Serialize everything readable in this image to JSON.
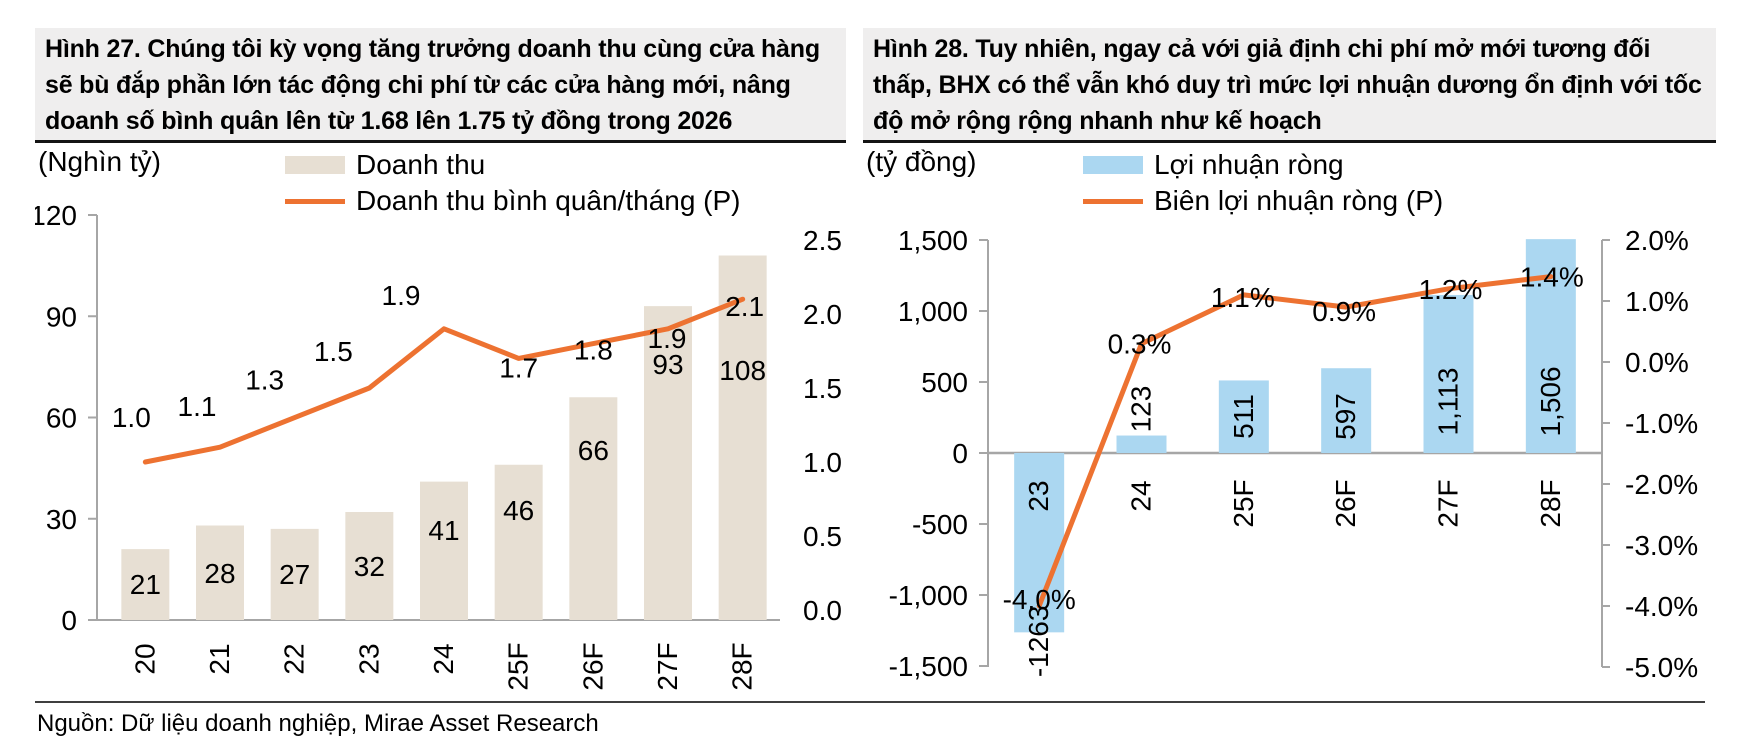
{
  "page": {
    "source": "Nguồn: Dữ liệu doanh nghiệp, Mirae Asset Research"
  },
  "chart_data": [
    {
      "type": "bar",
      "subtype": "combo-bar-line",
      "title": "Hình 27. Chúng tôi kỳ vọng tăng trưởng doanh thu cùng cửa hàng sẽ bù đắp phần lớn tác động chi phí từ các cửa hàng mới, nâng doanh số bình quân lên từ 1.68 lên 1.75 tỷ đồng trong 2026",
      "unit_label": "(Nghìn tỷ)",
      "categories": [
        "20",
        "21",
        "22",
        "23",
        "24",
        "25F",
        "26F",
        "27F",
        "28F"
      ],
      "series": [
        {
          "name": "Doanh thu",
          "type": "bar",
          "axis": "left",
          "color": "#e7dfd3",
          "values": [
            21,
            28,
            27,
            32,
            41,
            46,
            66,
            93,
            108
          ],
          "labels": [
            "21",
            "28",
            "27",
            "32",
            "41",
            "46",
            "66",
            "93",
            "108"
          ]
        },
        {
          "name": "Doanh thu bình quân/tháng (P)",
          "type": "line",
          "axis": "right",
          "color": "#ed7231",
          "values": [
            1.0,
            1.1,
            1.3,
            1.5,
            1.9,
            1.7,
            1.8,
            1.9,
            2.1
          ],
          "labels": [
            "1.0",
            "1.1",
            "1.3",
            "1.5",
            "1.9",
            "1.7",
            "1.8",
            "1.9",
            "2.1"
          ]
        }
      ],
      "left_axis": {
        "min": 0,
        "max": 120,
        "tick_values": [
          0,
          30,
          60,
          90,
          120
        ],
        "tick_labels": [
          "0",
          "30",
          "60",
          "90",
          "120"
        ]
      },
      "right_axis": {
        "min": 0.0,
        "max": 2.5,
        "tick_values": [
          2.5,
          2.0,
          1.5,
          1.0,
          0.5,
          0.0
        ],
        "tick_labels": [
          "2.5",
          "2.0",
          "1.5",
          "1.0",
          "0.5",
          "0.0"
        ]
      },
      "gridlines": false,
      "legend_position": "top"
    },
    {
      "type": "bar",
      "subtype": "combo-bar-line",
      "title": "Hình 28. Tuy nhiên, ngay cả với giả định chi phí mở mới tương đối thấp, BHX có thể vẫn khó duy trì mức lợi nhuận dương ổn định với tốc độ mở rộng rộng nhanh như kế hoạch",
      "unit_label": "(tỷ đồng)",
      "categories": [
        "23",
        "24",
        "25F",
        "26F",
        "27F",
        "28F"
      ],
      "series": [
        {
          "name": "Lợi nhuận ròng",
          "type": "bar",
          "axis": "left",
          "color": "#abd7f1",
          "values": [
            -1263,
            123,
            511,
            597,
            1113,
            1506
          ],
          "labels": [
            "-1263",
            "123",
            "511",
            "597",
            "1,113",
            "1,506"
          ]
        },
        {
          "name": "Biên lợi nhuận ròng (P)",
          "type": "line",
          "axis": "right",
          "color": "#ed7231",
          "values": [
            -4.0,
            0.3,
            1.1,
            0.9,
            1.2,
            1.4
          ],
          "labels": [
            "-4.0%",
            "0.3%",
            "1.1%",
            "0.9%",
            "1.2%",
            "1.4%"
          ]
        }
      ],
      "left_axis": {
        "min": -1500,
        "max": 1500,
        "tick_values": [
          1500,
          1000,
          500,
          0,
          -500,
          -1000,
          -1500
        ],
        "tick_labels": [
          "1,500",
          "1,000",
          "500",
          "0",
          "-500",
          "-1,000",
          "-1,500"
        ]
      },
      "right_axis": {
        "min": -5.0,
        "max": 2.0,
        "tick_values": [
          2.0,
          1.0,
          0.0,
          -1.0,
          -2.0,
          -3.0,
          -4.0,
          -5.0
        ],
        "tick_labels": [
          "2.0%",
          "1.0%",
          "0.0%",
          "-1.0%",
          "-2.0%",
          "-3.0%",
          "-4.0%",
          "-5.0%"
        ]
      },
      "gridlines": false,
      "legend_position": "top"
    }
  ]
}
